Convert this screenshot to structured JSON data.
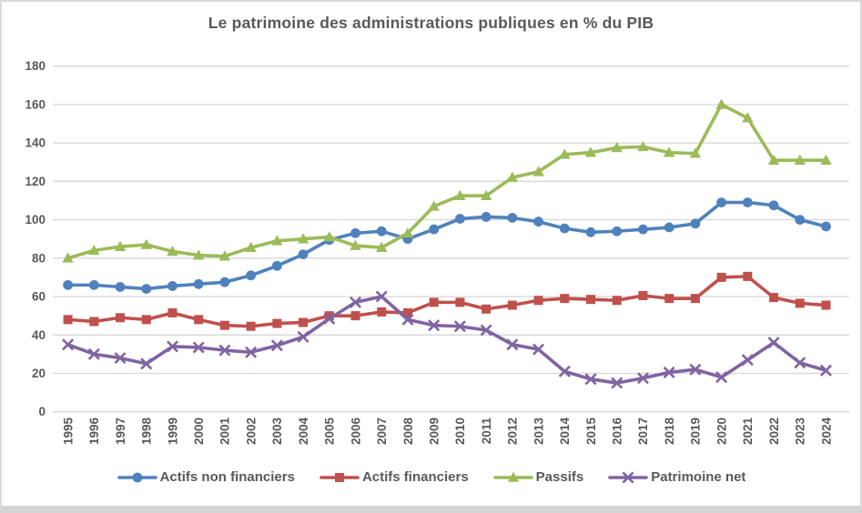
{
  "chart_data": {
    "type": "line",
    "title": "Le patrimoine des administrations publiques en % du PIB",
    "categories": [
      1995,
      1996,
      1997,
      1998,
      1999,
      2000,
      2001,
      2002,
      2003,
      2004,
      2005,
      2006,
      2007,
      2008,
      2009,
      2010,
      2011,
      2012,
      2013,
      2014,
      2015,
      2016,
      2017,
      2018,
      2019,
      2020,
      2021,
      2022,
      2023,
      2024
    ],
    "series": [
      {
        "name": "Actifs non financiers",
        "marker": "circle",
        "color": "#4F81BD",
        "values": [
          66,
          66,
          65,
          64,
          65.5,
          66.5,
          67.5,
          71,
          76,
          82,
          89.5,
          93,
          94,
          90,
          95,
          100.5,
          101.5,
          101,
          99,
          95.5,
          93.5,
          94,
          95,
          96,
          98,
          109,
          109,
          107.5,
          100,
          96.5
        ]
      },
      {
        "name": "Actifs financiers",
        "marker": "square",
        "color": "#C0504D",
        "values": [
          48,
          47,
          49,
          48,
          51.5,
          48,
          45,
          44.5,
          46,
          46.5,
          50,
          50,
          52,
          51.5,
          57,
          57,
          53.5,
          55.5,
          58,
          59,
          58.5,
          58,
          60.5,
          59,
          59,
          70,
          70.5,
          59.5,
          56.5,
          55.5
        ]
      },
      {
        "name": "Passifs",
        "marker": "triangle",
        "color": "#9BBB59",
        "values": [
          80,
          84,
          86,
          87,
          83.5,
          81.5,
          81,
          85.5,
          89,
          90,
          91,
          86.5,
          85.5,
          93,
          107,
          112.5,
          112.5,
          122,
          125,
          134,
          135,
          137.5,
          138,
          135,
          134.5,
          160,
          153,
          131,
          131,
          131
        ]
      },
      {
        "name": "Patrimoine net",
        "marker": "x",
        "color": "#8064A2",
        "values": [
          35,
          30,
          28,
          25,
          34,
          33.5,
          32,
          31,
          34.5,
          39,
          48.5,
          57,
          60,
          48,
          45,
          44.5,
          42.5,
          35,
          32.5,
          21,
          17,
          15,
          17.5,
          20.5,
          22,
          18,
          27,
          36,
          25.5,
          21.5
        ]
      }
    ],
    "ylim": [
      0,
      180
    ],
    "ytick_step": 20,
    "grid": true,
    "legend_position": "bottom",
    "xlabel": "",
    "ylabel": ""
  },
  "style": {
    "gridline_color": "#D9D9D9",
    "text_color": "#595959",
    "background": "#FFFFFF"
  }
}
